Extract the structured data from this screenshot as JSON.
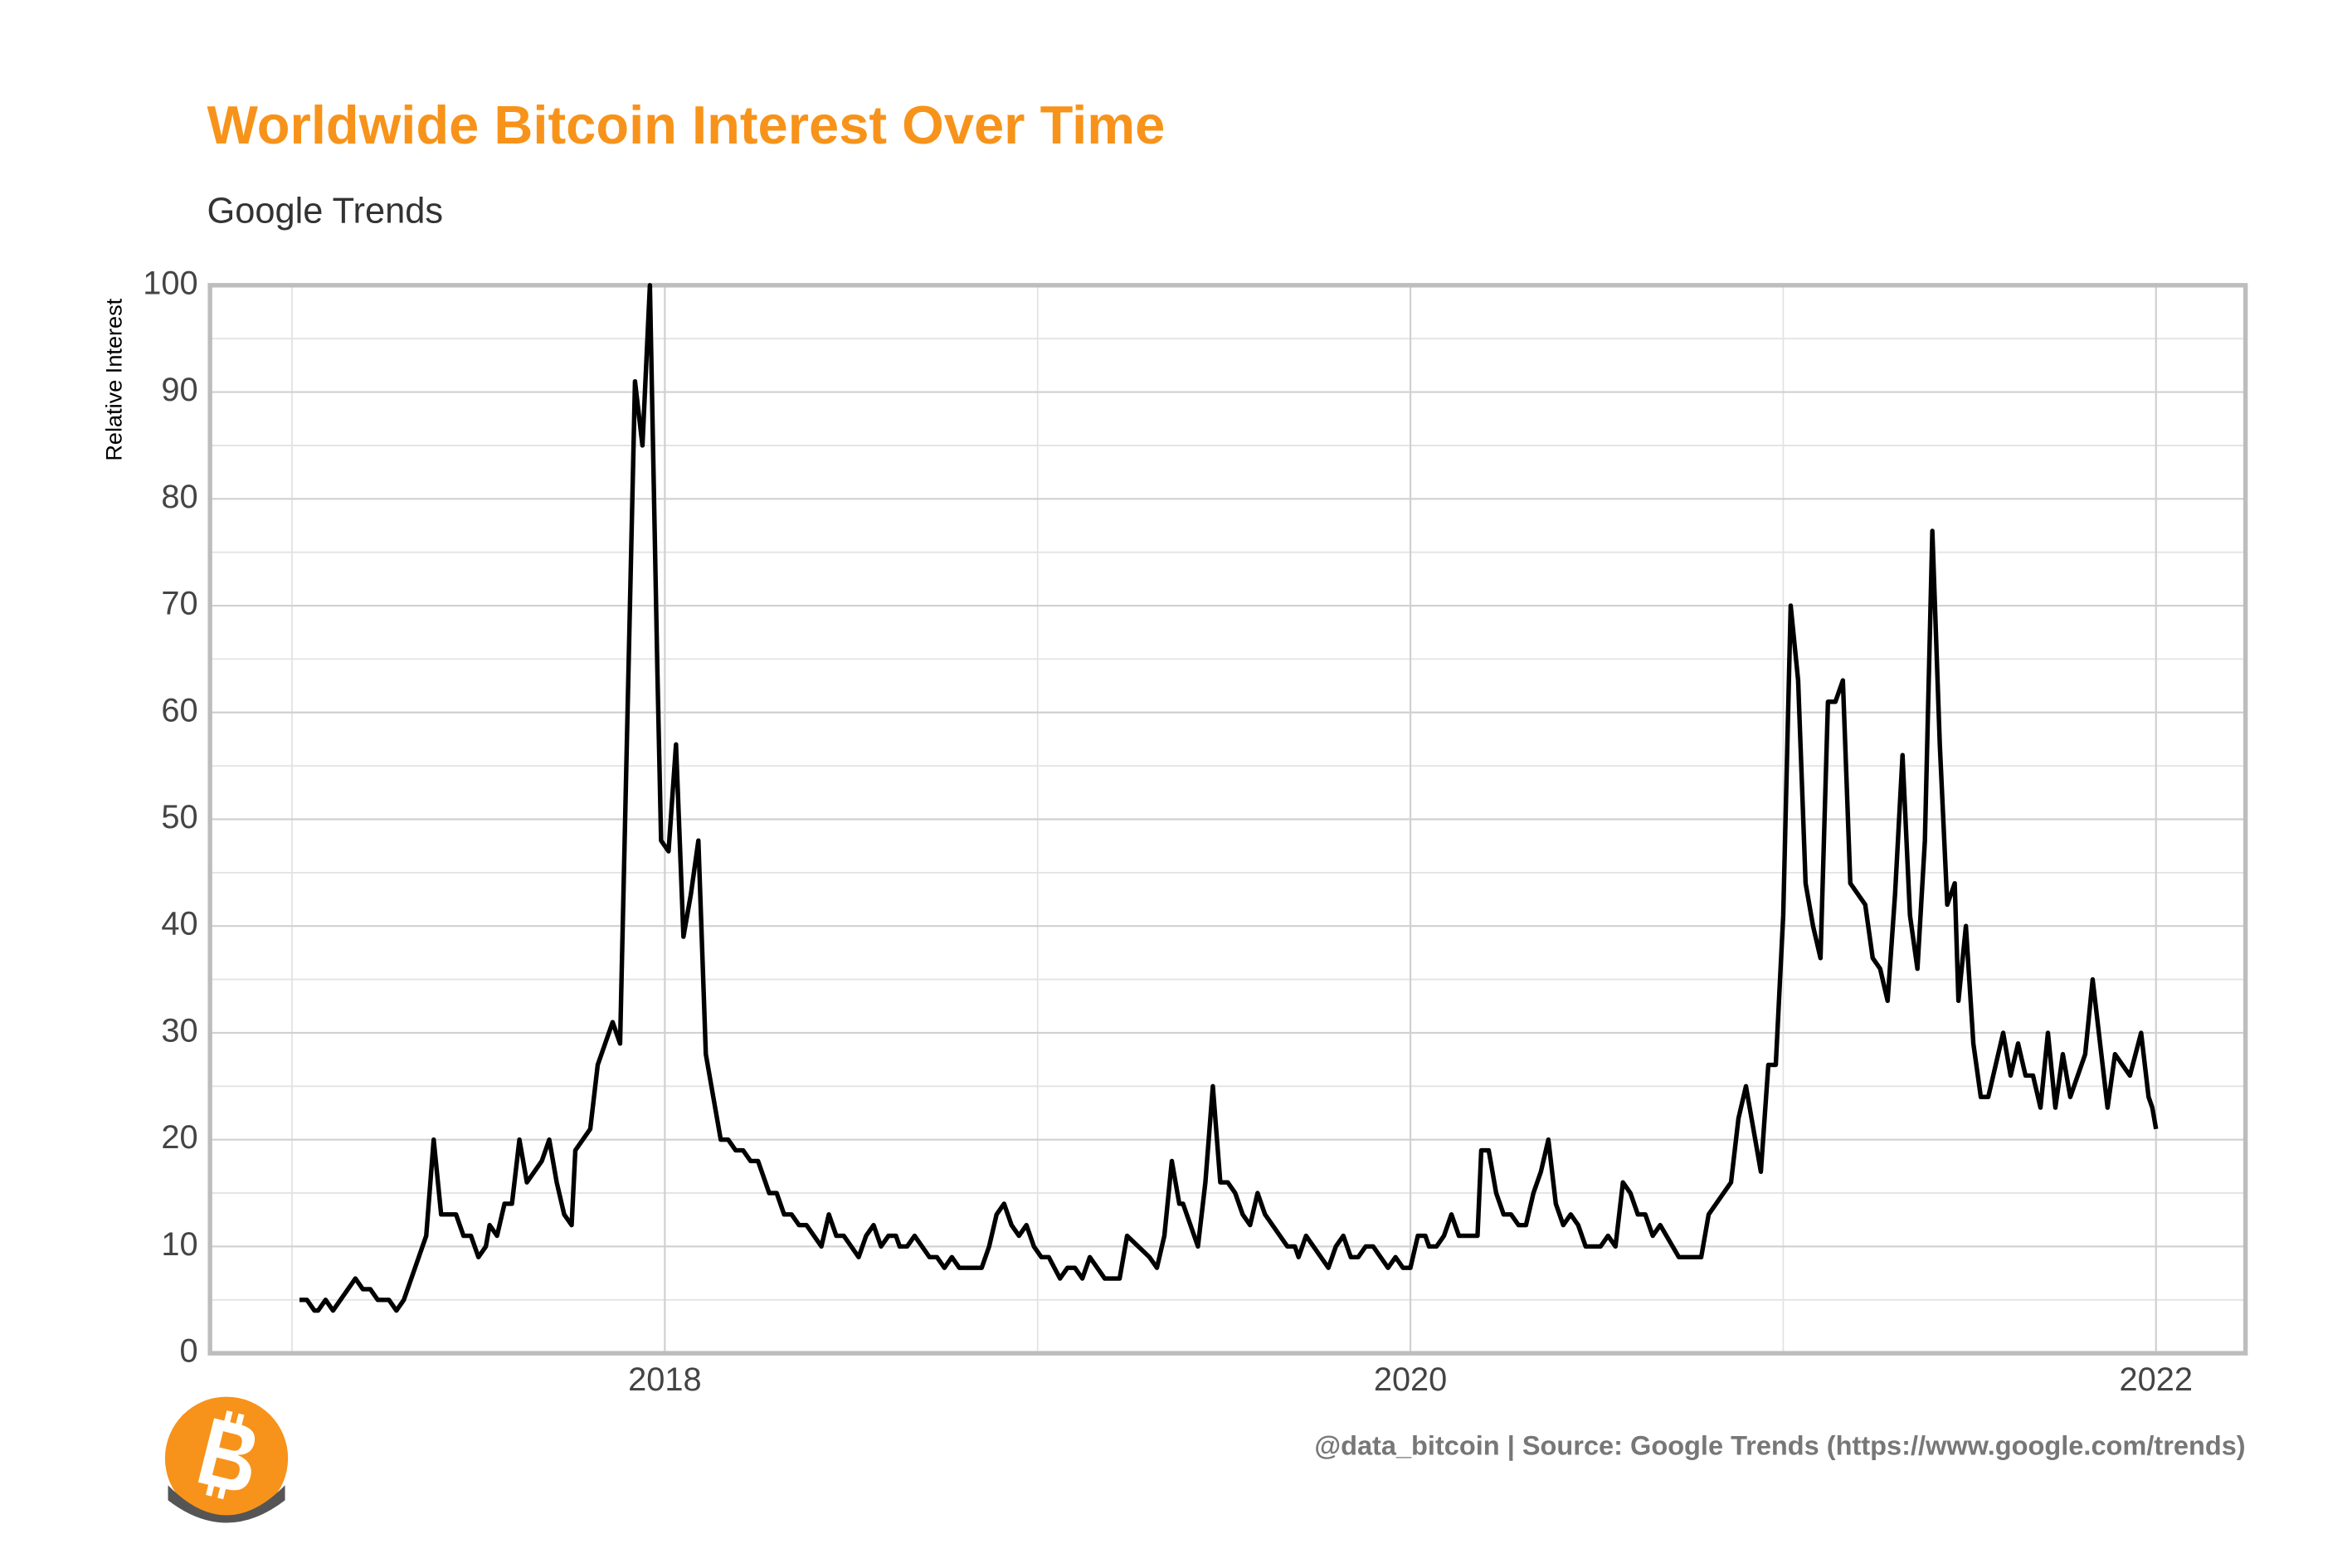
{
  "chart_data": {
    "type": "line",
    "title": "Worldwide Bitcoin Interest Over Time",
    "subtitle": "Google Trends",
    "y_label": "Relative Interest",
    "caption": "@data_bitcoin | Source: Google Trends (https://www.google.com/trends)",
    "color": "#000000",
    "grid": true,
    "xlim": [
      2016.78,
      2022.24
    ],
    "xticks": [
      2018,
      2020,
      2022
    ],
    "ylim": [
      0,
      100
    ],
    "yticks": [
      0,
      10,
      20,
      30,
      40,
      50,
      60,
      70,
      80,
      90,
      100
    ],
    "x": [
      2017.02,
      2017.04,
      2017.06,
      2017.07,
      2017.09,
      2017.11,
      2017.15,
      2017.17,
      2017.19,
      2017.21,
      2017.23,
      2017.26,
      2017.28,
      2017.3,
      2017.36,
      2017.38,
      2017.4,
      2017.44,
      2017.46,
      2017.48,
      2017.5,
      2017.52,
      2017.53,
      2017.55,
      2017.57,
      2017.59,
      2017.61,
      2017.63,
      2017.67,
      2017.69,
      2017.71,
      2017.73,
      2017.75,
      2017.76,
      2017.8,
      2017.82,
      2017.86,
      2017.88,
      2017.92,
      2017.94,
      2017.96,
      2017.98,
      2017.99,
      2018.01,
      2018.03,
      2018.05,
      2018.07,
      2018.09,
      2018.11,
      2018.15,
      2018.17,
      2018.19,
      2018.21,
      2018.23,
      2018.25,
      2018.27,
      2018.28,
      2018.3,
      2018.32,
      2018.34,
      2018.36,
      2018.38,
      2018.42,
      2018.44,
      2018.46,
      2018.48,
      2018.52,
      2018.54,
      2018.56,
      2018.58,
      2018.6,
      2018.62,
      2018.63,
      2018.65,
      2018.67,
      2018.71,
      2018.73,
      2018.75,
      2018.77,
      2018.79,
      2018.85,
      2018.87,
      2018.89,
      2018.91,
      2018.93,
      2018.95,
      2018.97,
      2018.99,
      2019.01,
      2019.03,
      2019.06,
      2019.08,
      2019.1,
      2019.12,
      2019.14,
      2019.18,
      2019.22,
      2019.24,
      2019.3,
      2019.32,
      2019.34,
      2019.36,
      2019.38,
      2019.39,
      2019.43,
      2019.45,
      2019.47,
      2019.49,
      2019.51,
      2019.53,
      2019.55,
      2019.57,
      2019.59,
      2019.61,
      2019.67,
      2019.69,
      2019.7,
      2019.72,
      2019.76,
      2019.78,
      2019.8,
      2019.82,
      2019.84,
      2019.86,
      2019.88,
      2019.9,
      2019.94,
      2019.96,
      2019.98,
      2020.0,
      2020.02,
      2020.04,
      2020.05,
      2020.07,
      2020.09,
      2020.11,
      2020.13,
      2020.16,
      2020.18,
      2020.19,
      2020.21,
      2020.23,
      2020.25,
      2020.27,
      2020.29,
      2020.31,
      2020.33,
      2020.35,
      2020.37,
      2020.39,
      2020.41,
      2020.43,
      2020.45,
      2020.47,
      2020.51,
      2020.53,
      2020.55,
      2020.57,
      2020.59,
      2020.61,
      2020.63,
      2020.65,
      2020.67,
      2020.72,
      2020.74,
      2020.76,
      2020.78,
      2020.8,
      2020.86,
      2020.88,
      2020.9,
      2020.92,
      2020.94,
      2020.96,
      2020.98,
      2021.0,
      2021.02,
      2021.04,
      2021.06,
      2021.08,
      2021.1,
      2021.12,
      2021.14,
      2021.16,
      2021.18,
      2021.2,
      2021.22,
      2021.24,
      2021.26,
      2021.28,
      2021.3,
      2021.32,
      2021.34,
      2021.36,
      2021.38,
      2021.4,
      2021.42,
      2021.44,
      2021.46,
      2021.47,
      2021.49,
      2021.51,
      2021.53,
      2021.55,
      2021.59,
      2021.61,
      2021.63,
      2021.65,
      2021.67,
      2021.69,
      2021.71,
      2021.73,
      2021.75,
      2021.77,
      2021.81,
      2021.83,
      2021.87,
      2021.89,
      2021.93,
      2021.96,
      2021.98,
      2021.99,
      2022.0
    ],
    "values": [
      5,
      5,
      4,
      4,
      5,
      4,
      6,
      7,
      6,
      6,
      5,
      5,
      4,
      5,
      11,
      20,
      13,
      13,
      11,
      11,
      9,
      10,
      12,
      11,
      14,
      14,
      20,
      16,
      18,
      20,
      16,
      13,
      12,
      19,
      21,
      27,
      31,
      29,
      91,
      85,
      100,
      64,
      48,
      47,
      57,
      39,
      43,
      48,
      28,
      20,
      20,
      19,
      19,
      18,
      18,
      16,
      15,
      15,
      13,
      13,
      12,
      12,
      10,
      13,
      11,
      11,
      9,
      11,
      12,
      10,
      11,
      11,
      10,
      10,
      11,
      9,
      9,
      8,
      9,
      8,
      8,
      10,
      13,
      14,
      12,
      11,
      12,
      10,
      9,
      9,
      7,
      8,
      8,
      7,
      9,
      7,
      7,
      11,
      9,
      8,
      11,
      18,
      14,
      14,
      10,
      16,
      25,
      16,
      16,
      15,
      13,
      12,
      15,
      13,
      10,
      10,
      9,
      11,
      9,
      8,
      10,
      11,
      9,
      9,
      10,
      10,
      8,
      9,
      8,
      8,
      11,
      11,
      10,
      10,
      11,
      13,
      11,
      11,
      11,
      19,
      19,
      15,
      13,
      13,
      12,
      12,
      15,
      17,
      20,
      14,
      12,
      13,
      12,
      10,
      10,
      11,
      10,
      16,
      15,
      13,
      13,
      11,
      12,
      9,
      9,
      9,
      9,
      13,
      16,
      22,
      25,
      21,
      17,
      27,
      27,
      41,
      70,
      63,
      44,
      40,
      37,
      61,
      61,
      63,
      44,
      43,
      42,
      37,
      36,
      33,
      43,
      56,
      41,
      36,
      48,
      77,
      57,
      42,
      44,
      33,
      40,
      29,
      24,
      24,
      30,
      26,
      29,
      26,
      26,
      23,
      30,
      23,
      28,
      24,
      28,
      35,
      23,
      28,
      26,
      30,
      24,
      23,
      21
    ]
  }
}
